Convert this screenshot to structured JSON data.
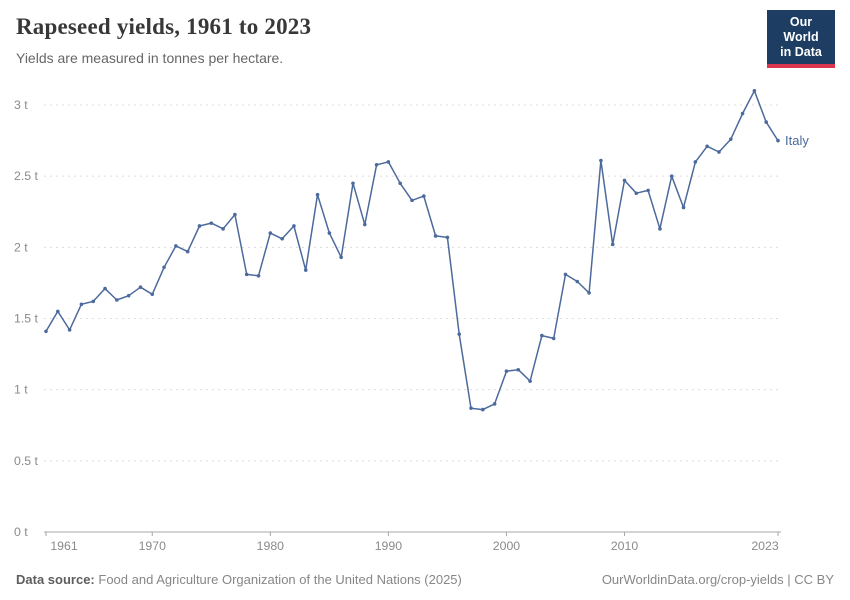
{
  "header": {
    "title": "Rapeseed yields, 1961 to 2023",
    "subtitle": "Yields are measured in tonnes per hectare.",
    "logo_line1": "Our World",
    "logo_line2": "in Data"
  },
  "chart_data": {
    "type": "line",
    "title": "Rapeseed yields, 1961 to 2023",
    "ylabel": "tonnes per hectare",
    "xlabel": "",
    "x_range": [
      1961,
      2023
    ],
    "ylim": [
      0,
      3
    ],
    "yticks": [
      0,
      0.5,
      1,
      1.5,
      2,
      2.5,
      3
    ],
    "ytick_labels": [
      "0 t",
      "0.5 t",
      "1 t",
      "1.5 t",
      "2 t",
      "2.5 t",
      "3 t"
    ],
    "xticks": [
      1961,
      1970,
      1980,
      1990,
      2000,
      2010,
      2023
    ],
    "grid": "horizontal-dashed",
    "legend": "end-of-line-label",
    "x": [
      1961,
      1962,
      1963,
      1964,
      1965,
      1966,
      1967,
      1968,
      1969,
      1970,
      1971,
      1972,
      1973,
      1974,
      1975,
      1976,
      1977,
      1978,
      1979,
      1980,
      1981,
      1982,
      1983,
      1984,
      1985,
      1986,
      1987,
      1988,
      1989,
      1990,
      1991,
      1992,
      1993,
      1994,
      1995,
      1996,
      1997,
      1998,
      1999,
      2000,
      2001,
      2002,
      2003,
      2004,
      2005,
      2006,
      2007,
      2008,
      2009,
      2010,
      2011,
      2012,
      2013,
      2014,
      2015,
      2016,
      2017,
      2018,
      2019,
      2020,
      2021,
      2022,
      2023
    ],
    "series": [
      {
        "name": "Italy",
        "values": [
          1.41,
          1.55,
          1.42,
          1.6,
          1.62,
          1.71,
          1.63,
          1.66,
          1.72,
          1.67,
          1.86,
          2.01,
          1.97,
          2.15,
          2.17,
          2.13,
          2.23,
          1.81,
          1.8,
          2.1,
          2.06,
          2.15,
          1.84,
          2.37,
          2.1,
          1.93,
          2.45,
          2.16,
          2.58,
          2.6,
          2.45,
          2.33,
          2.36,
          2.08,
          2.07,
          1.39,
          0.87,
          0.86,
          0.9,
          1.13,
          1.14,
          1.06,
          1.38,
          1.36,
          1.81,
          1.76,
          1.68,
          2.61,
          2.02,
          2.47,
          2.38,
          2.4,
          2.13,
          2.5,
          2.28,
          2.6,
          2.71,
          2.67,
          2.76,
          2.94,
          3.1,
          2.88,
          2.75
        ]
      }
    ]
  },
  "footer": {
    "source_label": "Data source:",
    "source_text": "Food and Agriculture Organization of the United Nations (2025)",
    "link_text": "OurWorldinData.org/crop-yields",
    "separator": " | ",
    "license_text": "CC BY"
  },
  "colors": {
    "series": "#4c6a9c",
    "logo_bg": "#1d3d63",
    "logo_accent": "#dc354e",
    "grid": "#dcdcdc",
    "axis": "#a7a7a7",
    "tick_text": "#8a8a8a"
  }
}
